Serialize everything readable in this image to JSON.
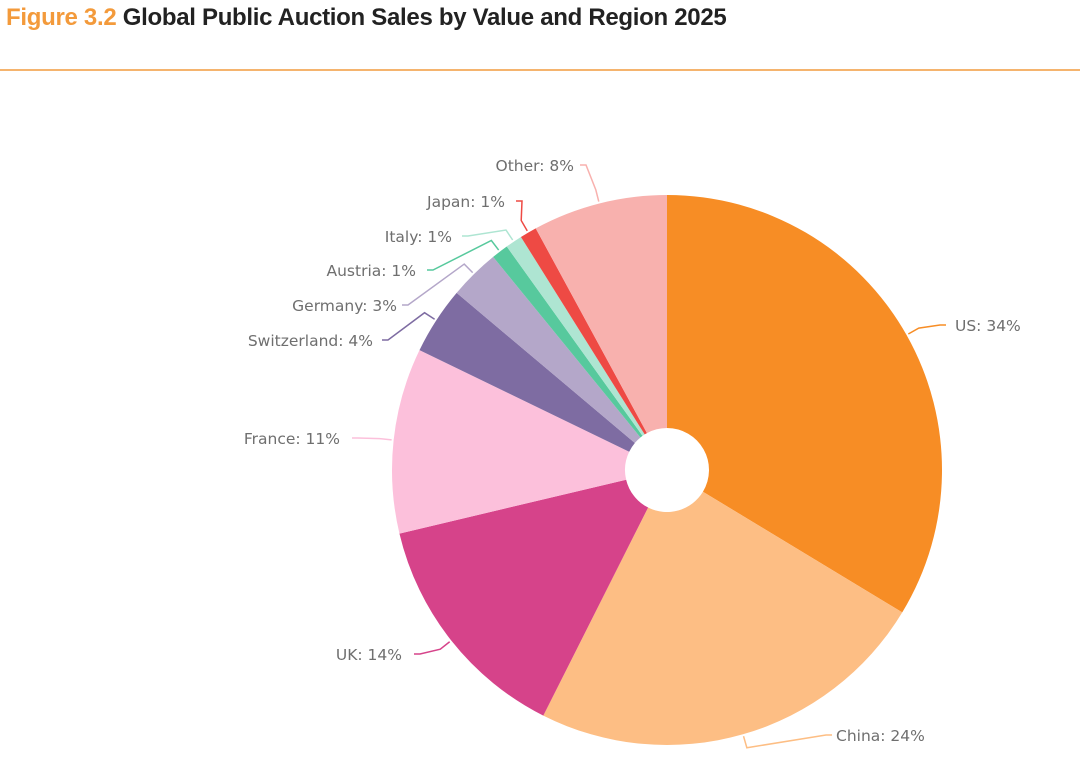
{
  "title": {
    "figure": "Figure 3.2",
    "text": "Global Public Auction Sales by Value and Region 2025"
  },
  "chart_data": {
    "type": "pie",
    "donut": true,
    "title": "Figure 3.2 Global Public Auction Sales by Value and Region 2025",
    "unit": "%",
    "slices": [
      {
        "name": "US",
        "value": 34,
        "label": "US: 34%",
        "color": "#F78D25"
      },
      {
        "name": "China",
        "value": 24,
        "label": "China: 24%",
        "color": "#FDBE84"
      },
      {
        "name": "UK",
        "value": 14,
        "label": "UK: 14%",
        "color": "#D6438A"
      },
      {
        "name": "France",
        "value": 11,
        "label": "France: 11%",
        "color": "#FCC0DB"
      },
      {
        "name": "Switzerland",
        "value": 4,
        "label": "Switzerland: 4%",
        "color": "#7E6CA2"
      },
      {
        "name": "Germany",
        "value": 3,
        "label": "Germany: 3%",
        "color": "#B4A7C9"
      },
      {
        "name": "Austria",
        "value": 1,
        "label": "Austria: 1%",
        "color": "#57C99D"
      },
      {
        "name": "Italy",
        "value": 1,
        "label": "Italy: 1%",
        "color": "#AEE5D2"
      },
      {
        "name": "Japan",
        "value": 1,
        "label": "Japan: 1%",
        "color": "#EE4A44"
      },
      {
        "name": "Other",
        "value": 8,
        "label": "Other: 8%",
        "color": "#F8B1AE"
      }
    ]
  }
}
